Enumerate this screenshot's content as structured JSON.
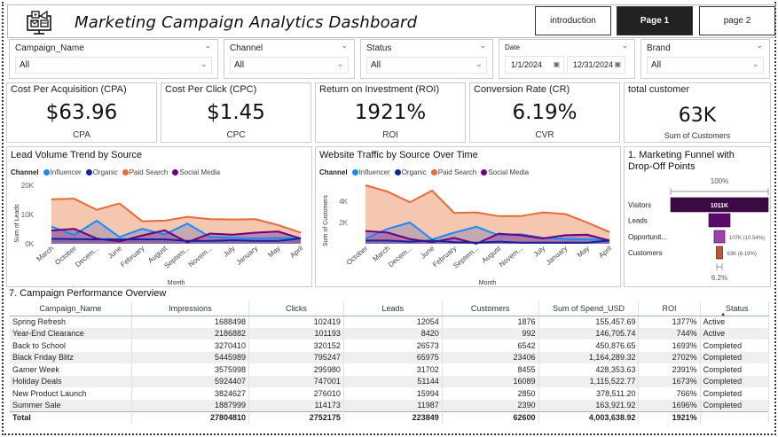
{
  "header": {
    "title": "Marketing Campaign Analytics Dashboard",
    "logo_icon": "marketing-monitor-icon",
    "nav": [
      {
        "label": "introduction",
        "active": false
      },
      {
        "label": "Page 1",
        "active": true
      },
      {
        "label": "page 2",
        "active": false
      }
    ]
  },
  "slicers": {
    "campaign": {
      "label": "Campaign_Name",
      "value": "All"
    },
    "channel": {
      "label": "Channel",
      "value": "All"
    },
    "status": {
      "label": "Status",
      "value": "All"
    },
    "date": {
      "label": "Date",
      "start": "1/1/2024",
      "end": "12/31/2024"
    },
    "brand": {
      "label": "Brand",
      "value": "All"
    }
  },
  "kpis": [
    {
      "title": "Cost Per Acquisition (CPA)",
      "value": "$63.96",
      "sub": "CPA"
    },
    {
      "title": "Cost Per Click (CPC)",
      "value": "$1.45",
      "sub": "CPC"
    },
    {
      "title": "Return on Investment (ROI)",
      "value": "1921%",
      "sub": "ROI"
    },
    {
      "title": "Conversion Rate (CR)",
      "value": "6.19%",
      "sub": "CVR"
    },
    {
      "title": "total customer",
      "value": "63K",
      "sub": "Sum of Customers"
    }
  ],
  "colors": {
    "influencer": "#118DFF",
    "organic": "#12239E",
    "paid_search": "#E66C37",
    "social_media": "#6B007B",
    "funnel_visitors": "#3B0A45",
    "funnel_leads": "#5A0A6B",
    "funnel_opps": "#A23DAE",
    "funnel_customers": "#C0562A"
  },
  "chart_data": [
    {
      "type": "area",
      "title": "Lead Volume Trend by Source",
      "legend_title": "Channel",
      "legend_position": "top-left",
      "xlabel": "Month",
      "ylabel": "Sum of Leads",
      "ylim": [
        0,
        20000
      ],
      "yticks": [
        "0K",
        "10K",
        "20K"
      ],
      "categories": [
        "March",
        "October",
        "Decem...",
        "June",
        "February",
        "August",
        "Septem...",
        "Novem...",
        "July",
        "January",
        "May",
        "April"
      ],
      "series": [
        {
          "name": "Influencer",
          "values": [
            5900,
            3000,
            7900,
            2300,
            5100,
            3200,
            6900,
            2300,
            2000,
            1800,
            2000,
            1800
          ]
        },
        {
          "name": "Organic",
          "values": [
            1700,
            1600,
            1500,
            1500,
            1500,
            1500,
            1000,
            1000,
            1200,
            1000,
            1000,
            1800
          ]
        },
        {
          "name": "Paid Search",
          "values": [
            15200,
            15400,
            11600,
            13800,
            7700,
            7900,
            9200,
            8400,
            8300,
            8400,
            6400,
            3800
          ]
        },
        {
          "name": "Social Media",
          "values": [
            4500,
            5100,
            1800,
            800,
            2800,
            4600,
            500,
            3500,
            3100,
            3800,
            4200,
            1800
          ]
        }
      ]
    },
    {
      "type": "area",
      "title": "Website Traffic by Source Over Time",
      "legend_title": "Channel",
      "legend_position": "top-left",
      "xlabel": "Month",
      "ylabel": "Sum of Customers",
      "ylim": [
        0,
        6000
      ],
      "yticks": [
        "2K",
        "4K"
      ],
      "categories": [
        "October",
        "March",
        "Decem...",
        "June",
        "February",
        "Septem...",
        "August",
        "Novem...",
        "July",
        "January",
        "May",
        "April"
      ],
      "series": [
        {
          "name": "Influencer",
          "values": [
            500,
            1400,
            2000,
            400,
            1050,
            1600,
            800,
            900,
            550,
            450,
            400,
            350
          ]
        },
        {
          "name": "Organic",
          "values": [
            300,
            300,
            200,
            300,
            150,
            100,
            200,
            100,
            100,
            100,
            100,
            300
          ]
        },
        {
          "name": "Paid Search",
          "values": [
            5500,
            4900,
            3900,
            5000,
            2900,
            2950,
            2600,
            2600,
            2950,
            2800,
            2000,
            1100
          ]
        },
        {
          "name": "Social Media",
          "values": [
            1200,
            1050,
            450,
            150,
            550,
            0,
            950,
            800,
            500,
            800,
            850,
            300
          ]
        }
      ]
    },
    {
      "type": "funnel",
      "title": "1. Marketing Funnel with Drop-Off Points",
      "top_label": "100%",
      "bottom_label": "6.2%",
      "stages": [
        {
          "name": "Visitors",
          "value": 1011000,
          "label": "1011K"
        },
        {
          "name": "Leads",
          "value": 223849,
          "label": ""
        },
        {
          "name": "Opportunit...",
          "value": 107000,
          "label": "107K (10.54%)"
        },
        {
          "name": "Customers",
          "value": 63000,
          "label": "63K (6.19%)"
        }
      ]
    }
  ],
  "table": {
    "title": "7. Campaign Performance Overview",
    "columns": [
      "Campaign_Name",
      "Impressions",
      "Clicks",
      "Leads",
      "Customers",
      "Sum of Spend_USD",
      "ROI",
      "Status"
    ],
    "sorted_column": "Status",
    "rows": [
      [
        "Spring Refresh",
        "1688498",
        "102419",
        "12054",
        "1876",
        "155,457.69",
        "1377%",
        "Active"
      ],
      [
        "Year-End Clearance",
        "2186882",
        "101193",
        "8420",
        "992",
        "146,705.74",
        "744%",
        "Active"
      ],
      [
        "Back to School",
        "3270410",
        "320152",
        "26573",
        "6542",
        "450,876.65",
        "1693%",
        "Completed"
      ],
      [
        "Black Friday Blitz",
        "5445989",
        "795247",
        "65975",
        "23406",
        "1,164,289.32",
        "2702%",
        "Completed"
      ],
      [
        "Gamer Week",
        "3575998",
        "295980",
        "31702",
        "8455",
        "428,353.63",
        "2391%",
        "Completed"
      ],
      [
        "Holiday Deals",
        "5924407",
        "747001",
        "51144",
        "16089",
        "1,115,522.77",
        "1673%",
        "Completed"
      ],
      [
        "New Product Launch",
        "3824627",
        "276010",
        "15994",
        "2850",
        "378,511.20",
        "766%",
        "Completed"
      ],
      [
        "Summer Sale",
        "1887999",
        "114173",
        "11987",
        "2390",
        "163,921.92",
        "1696%",
        "Completed"
      ]
    ],
    "total": [
      "Total",
      "27804810",
      "2752175",
      "223849",
      "62600",
      "4,003,638.92",
      "1921%",
      ""
    ]
  }
}
